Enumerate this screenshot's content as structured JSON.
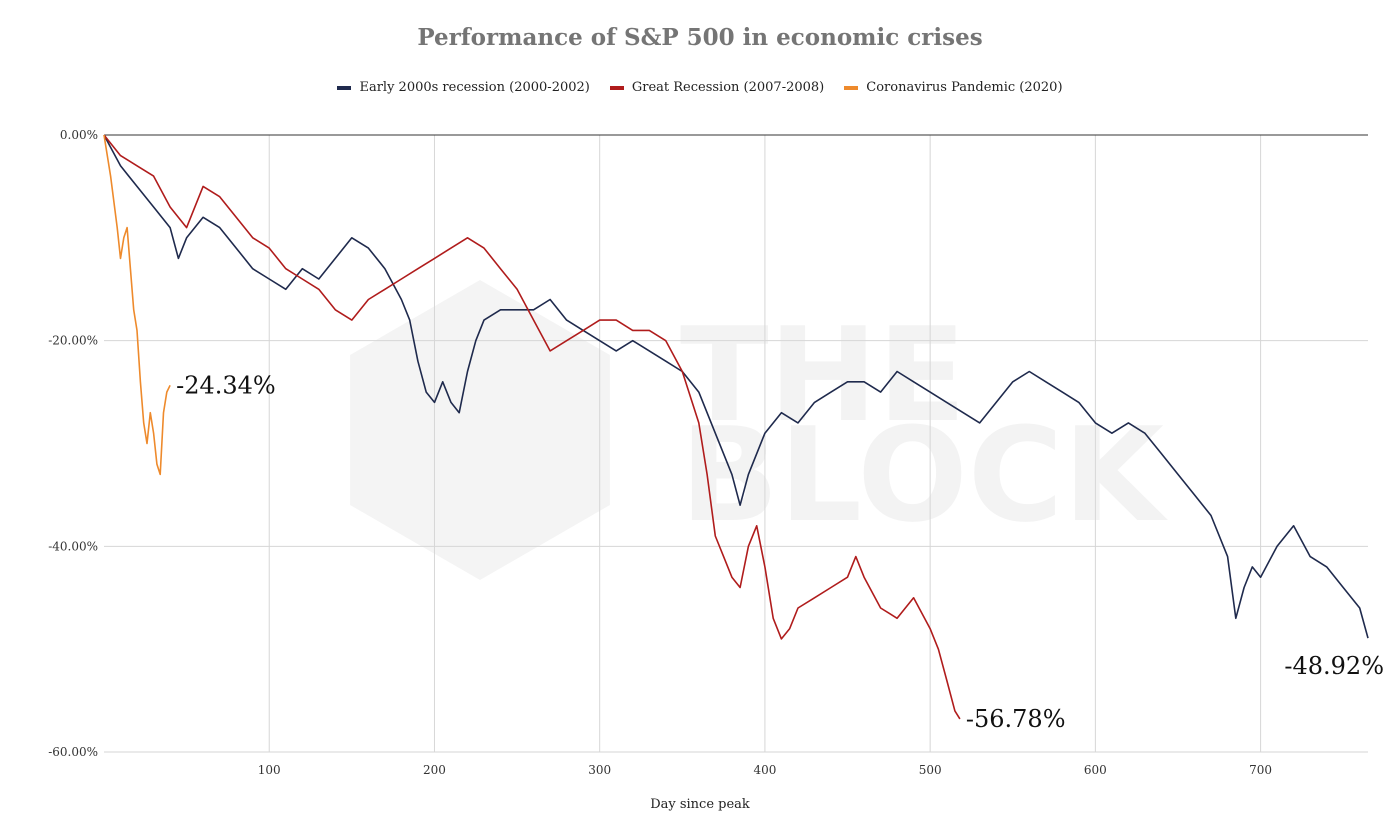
{
  "chart_data": {
    "type": "line",
    "title": "Performance of S&P 500 in economic crises",
    "xlabel": "Day since peak",
    "ylabel": "",
    "xlim": [
      0,
      765
    ],
    "ylim": [
      -60,
      0
    ],
    "x_ticks": [
      100,
      200,
      300,
      400,
      500,
      600,
      700
    ],
    "y_ticks": [
      0,
      -20,
      -40,
      -60
    ],
    "y_tick_labels": [
      "0.00%",
      "-20.00%",
      "-40.00%",
      "-60.00%"
    ],
    "grid": true,
    "legend_position": "top",
    "watermark": [
      "THE",
      "BLOCK"
    ],
    "series": [
      {
        "name": "Early 2000s recession (2000-2002)",
        "color": "#1f2a4d",
        "final_label": "-48.92%",
        "points": [
          [
            0,
            0
          ],
          [
            10,
            -3
          ],
          [
            20,
            -5
          ],
          [
            30,
            -7
          ],
          [
            40,
            -9
          ],
          [
            45,
            -12
          ],
          [
            50,
            -10
          ],
          [
            60,
            -8
          ],
          [
            70,
            -9
          ],
          [
            80,
            -11
          ],
          [
            90,
            -13
          ],
          [
            100,
            -14
          ],
          [
            110,
            -15
          ],
          [
            120,
            -13
          ],
          [
            130,
            -14
          ],
          [
            140,
            -12
          ],
          [
            150,
            -10
          ],
          [
            160,
            -11
          ],
          [
            170,
            -13
          ],
          [
            180,
            -16
          ],
          [
            185,
            -18
          ],
          [
            190,
            -22
          ],
          [
            195,
            -25
          ],
          [
            200,
            -26
          ],
          [
            205,
            -24
          ],
          [
            210,
            -26
          ],
          [
            215,
            -27
          ],
          [
            220,
            -23
          ],
          [
            225,
            -20
          ],
          [
            230,
            -18
          ],
          [
            240,
            -17
          ],
          [
            250,
            -17
          ],
          [
            260,
            -17
          ],
          [
            270,
            -16
          ],
          [
            280,
            -18
          ],
          [
            290,
            -19
          ],
          [
            300,
            -20
          ],
          [
            310,
            -21
          ],
          [
            320,
            -20
          ],
          [
            330,
            -21
          ],
          [
            340,
            -22
          ],
          [
            350,
            -23
          ],
          [
            360,
            -25
          ],
          [
            370,
            -29
          ],
          [
            380,
            -33
          ],
          [
            385,
            -36
          ],
          [
            390,
            -33
          ],
          [
            400,
            -29
          ],
          [
            410,
            -27
          ],
          [
            420,
            -28
          ],
          [
            430,
            -26
          ],
          [
            440,
            -25
          ],
          [
            450,
            -24
          ],
          [
            460,
            -24
          ],
          [
            470,
            -25
          ],
          [
            480,
            -23
          ],
          [
            490,
            -24
          ],
          [
            500,
            -25
          ],
          [
            510,
            -26
          ],
          [
            520,
            -27
          ],
          [
            530,
            -28
          ],
          [
            540,
            -26
          ],
          [
            550,
            -24
          ],
          [
            560,
            -23
          ],
          [
            570,
            -24
          ],
          [
            580,
            -25
          ],
          [
            590,
            -26
          ],
          [
            600,
            -28
          ],
          [
            610,
            -29
          ],
          [
            620,
            -28
          ],
          [
            630,
            -29
          ],
          [
            640,
            -31
          ],
          [
            650,
            -33
          ],
          [
            660,
            -35
          ],
          [
            670,
            -37
          ],
          [
            680,
            -41
          ],
          [
            685,
            -47
          ],
          [
            690,
            -44
          ],
          [
            695,
            -42
          ],
          [
            700,
            -43
          ],
          [
            710,
            -40
          ],
          [
            720,
            -38
          ],
          [
            730,
            -41
          ],
          [
            740,
            -42
          ],
          [
            750,
            -44
          ],
          [
            760,
            -46
          ],
          [
            765,
            -48.92
          ]
        ]
      },
      {
        "name": "Great Recession (2007-2008)",
        "color": "#b01c1c",
        "final_label": "-56.78%",
        "points": [
          [
            0,
            0
          ],
          [
            10,
            -2
          ],
          [
            20,
            -3
          ],
          [
            30,
            -4
          ],
          [
            40,
            -7
          ],
          [
            50,
            -9
          ],
          [
            60,
            -5
          ],
          [
            70,
            -6
          ],
          [
            80,
            -8
          ],
          [
            90,
            -10
          ],
          [
            100,
            -11
          ],
          [
            110,
            -13
          ],
          [
            120,
            -14
          ],
          [
            130,
            -15
          ],
          [
            140,
            -17
          ],
          [
            150,
            -18
          ],
          [
            160,
            -16
          ],
          [
            170,
            -15
          ],
          [
            180,
            -14
          ],
          [
            190,
            -13
          ],
          [
            200,
            -12
          ],
          [
            210,
            -11
          ],
          [
            220,
            -10
          ],
          [
            230,
            -11
          ],
          [
            240,
            -13
          ],
          [
            250,
            -15
          ],
          [
            260,
            -18
          ],
          [
            270,
            -21
          ],
          [
            280,
            -20
          ],
          [
            290,
            -19
          ],
          [
            300,
            -18
          ],
          [
            310,
            -18
          ],
          [
            320,
            -19
          ],
          [
            330,
            -19
          ],
          [
            340,
            -20
          ],
          [
            350,
            -23
          ],
          [
            360,
            -28
          ],
          [
            365,
            -33
          ],
          [
            370,
            -39
          ],
          [
            375,
            -41
          ],
          [
            380,
            -43
          ],
          [
            385,
            -44
          ],
          [
            390,
            -40
          ],
          [
            395,
            -38
          ],
          [
            400,
            -42
          ],
          [
            405,
            -47
          ],
          [
            410,
            -49
          ],
          [
            415,
            -48
          ],
          [
            420,
            -46
          ],
          [
            430,
            -45
          ],
          [
            440,
            -44
          ],
          [
            450,
            -43
          ],
          [
            455,
            -41
          ],
          [
            460,
            -43
          ],
          [
            470,
            -46
          ],
          [
            480,
            -47
          ],
          [
            490,
            -45
          ],
          [
            500,
            -48
          ],
          [
            505,
            -50
          ],
          [
            510,
            -53
          ],
          [
            515,
            -56
          ],
          [
            518,
            -56.78
          ]
        ]
      },
      {
        "name": "Coronavirus Pandemic (2020)",
        "color": "#ee8a2c",
        "final_label": "-24.34%",
        "points": [
          [
            0,
            0
          ],
          [
            4,
            -4
          ],
          [
            8,
            -9
          ],
          [
            10,
            -12
          ],
          [
            12,
            -10
          ],
          [
            14,
            -9
          ],
          [
            16,
            -13
          ],
          [
            18,
            -17
          ],
          [
            20,
            -19
          ],
          [
            22,
            -24
          ],
          [
            24,
            -28
          ],
          [
            26,
            -30
          ],
          [
            28,
            -27
          ],
          [
            30,
            -29
          ],
          [
            32,
            -32
          ],
          [
            34,
            -33
          ],
          [
            36,
            -27
          ],
          [
            38,
            -25
          ],
          [
            40,
            -24.34
          ]
        ]
      }
    ]
  }
}
